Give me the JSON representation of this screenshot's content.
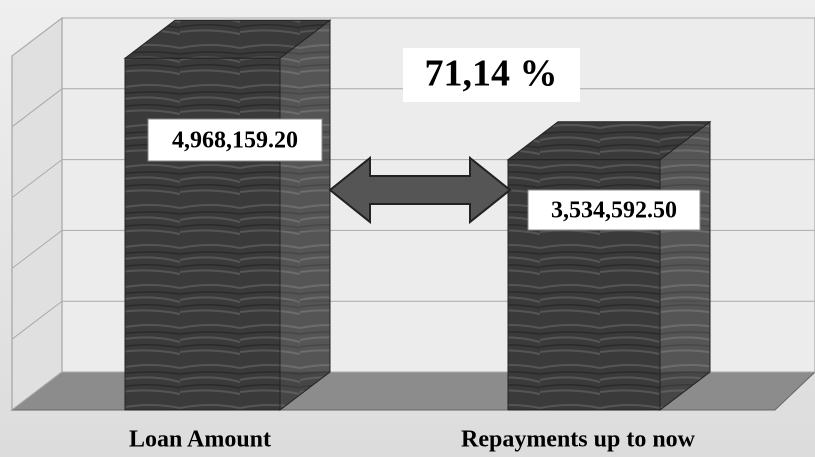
{
  "chart_data": {
    "type": "bar3d",
    "categories": [
      "Loan Amount",
      "Repayments up to now"
    ],
    "values": [
      4968159.2,
      3534592.5
    ],
    "value_labels": [
      "4,968,159.20",
      "3,534,592.50"
    ],
    "annotation": "71,14 %",
    "color": "#3c3c3c",
    "ylim": [
      0,
      5000000
    ],
    "yticks": [
      0,
      1000000,
      2000000,
      3000000,
      4000000,
      5000000
    ],
    "grid": true
  }
}
